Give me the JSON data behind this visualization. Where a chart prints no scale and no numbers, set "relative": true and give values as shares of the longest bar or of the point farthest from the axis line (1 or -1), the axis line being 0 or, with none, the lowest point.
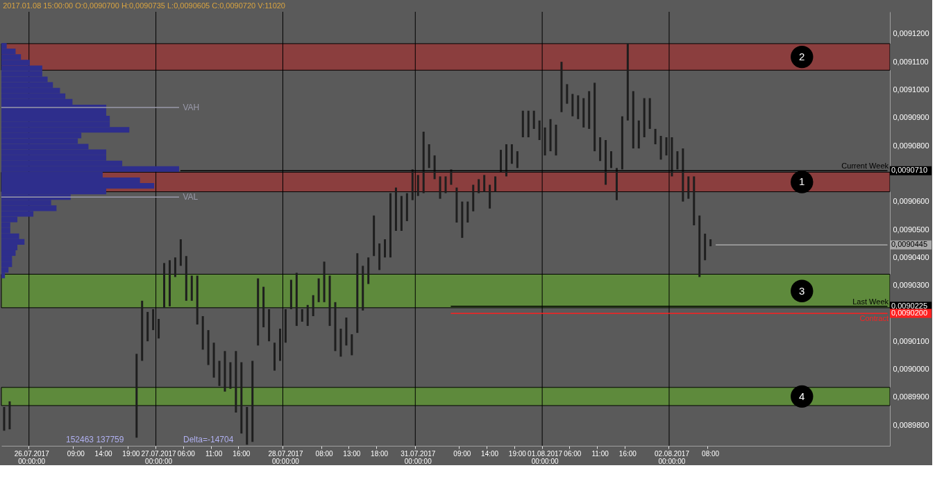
{
  "chart_data": [
    {
      "type": "bar",
      "title": "2017.01.08 15:00:00   O:0,0090700   H:0,0090735   L:0,0090605   C:0,0090720   V:11020",
      "categories": [
        null,
        null,
        null,
        null,
        null,
        "26.07.2017 00:00:00",
        null,
        null,
        null,
        null,
        null,
        null,
        null,
        "09:00",
        null,
        null,
        null,
        null,
        "14:00",
        null,
        null,
        null,
        null,
        "19:00",
        null,
        null,
        null,
        null,
        "27.07.2017 00:00:00",
        null,
        null,
        null,
        null,
        "06:00",
        null,
        null,
        null,
        null,
        "11:00",
        null,
        null,
        null,
        null,
        "16:00",
        null,
        null,
        null,
        null,
        null,
        null,
        null,
        "28.07.2017 00:00:00",
        null,
        null,
        null,
        null,
        null,
        null,
        "08:00",
        null,
        null,
        null,
        null,
        "13:00",
        null,
        null,
        null,
        null,
        "18:00",
        null,
        null,
        null,
        null,
        null,
        null,
        "31.07.2017 00:00:00",
        null,
        null,
        null,
        null,
        null,
        null,
        null,
        "09:00",
        null,
        null,
        null,
        null,
        "14:00",
        null,
        null,
        null,
        null,
        "19:00",
        null,
        null,
        null,
        null,
        "01.08.2017 00:00:00",
        null,
        null,
        null,
        null,
        "06:00",
        null,
        null,
        null,
        null,
        "11:00",
        null,
        null,
        null,
        null,
        "16:00",
        null,
        null,
        null,
        null,
        null,
        null,
        null,
        "02.08.2017 00:00:00",
        null,
        null,
        null,
        null,
        null,
        null,
        "08:00",
        null,
        null,
        null,
        null,
        null,
        null,
        null,
        null,
        null,
        null,
        null,
        null,
        null,
        null,
        null,
        null,
        null,
        null,
        null,
        null,
        null,
        null,
        null,
        null,
        null,
        null,
        null,
        null,
        null,
        null,
        null,
        null
      ],
      "ylim": [
        0.0089726,
        0.0091279
      ],
      "yticks": [
        {
          "value": 0.00912,
          "label": "0,0091200"
        },
        {
          "value": 0.00911,
          "label": "0,0091100"
        },
        {
          "value": 0.0091,
          "label": "0,0091000"
        },
        {
          "value": 0.00909,
          "label": "0,0090900"
        },
        {
          "value": 0.00908,
          "label": "0,0090800"
        },
        {
          "value": 0.00906,
          "label": "0,0090600"
        },
        {
          "value": 0.00905,
          "label": "0,0090500"
        },
        {
          "value": 0.00904,
          "label": "0,0090400"
        },
        {
          "value": 0.00903,
          "label": "0,0090300"
        },
        {
          "value": 0.00901,
          "label": "0,0090100"
        },
        {
          "value": 0.009,
          "label": "0,0090000"
        },
        {
          "value": 0.00899,
          "label": "0,0089900"
        },
        {
          "value": 0.00898,
          "label": "0,0089800"
        }
      ],
      "grid": false,
      "bands": [
        {
          "axis": "y",
          "from": 0.009107,
          "to": 0.0091165,
          "label": "2",
          "color": "#8b3e3e"
        },
        {
          "axis": "y",
          "from": 0.0090635,
          "to": 0.0090705,
          "label": "1",
          "color": "#8b3e3e"
        },
        {
          "axis": "y",
          "from": 0.009022,
          "to": 0.009034,
          "label": "3",
          "color": "#5e8a3c"
        },
        {
          "axis": "y",
          "from": 0.008987,
          "to": 0.0089935,
          "label": "4",
          "color": "#5e8a3c"
        }
      ],
      "ref_lines": [
        {
          "axis": "x",
          "value": "26.07.2017 00:00:00",
          "color": "#000000"
        },
        {
          "axis": "x",
          "value": "27.07.2017 00:00:00",
          "color": "#000000"
        },
        {
          "axis": "x",
          "value": "28.07.2017 00:00:00",
          "color": "#000000"
        },
        {
          "axis": "x",
          "value": "31.07.2017 00:00:00",
          "color": "#000000"
        },
        {
          "axis": "x",
          "value": "01.08.2017 00:00:00",
          "color": "#000000"
        },
        {
          "axis": "x",
          "value": "02.08.2017 00:00:00",
          "color": "#000000"
        }
      ],
      "series": [
        {
          "color": "#1e1e1e",
          "base": [
            0.008978,
            0.0089785,
            null,
            null,
            null,
            null,
            null,
            null,
            null,
            null,
            null,
            null,
            null,
            null,
            null,
            null,
            null,
            null,
            null,
            null,
            null,
            null,
            null,
            null,
            0.0089755,
            0.009003,
            0.00901,
            0.009014,
            0.009011,
            0.009022,
            0.0090225,
            0.009033,
            0.009037,
            0.0090245,
            0.0090245,
            0.009016,
            0.009007,
            0.0090015,
            0.008997,
            0.008994,
            0.008992,
            0.008993,
            0.0089845,
            0.008977,
            0.008973,
            0.008974,
            0.0090085,
            0.009015,
            0.00901,
            0.0089995,
            0.009003,
            0.0090095,
            0.0090215,
            0.0090155,
            0.009017,
            0.0090155,
            0.009019,
            0.009024,
            0.009024,
            0.0090155,
            0.0090065,
            0.0090045,
            0.0090085,
            0.009005,
            0.009013,
            0.009021,
            0.0090305,
            0.0090405,
            0.0090355,
            0.00904,
            0.00904,
            0.0090495,
            0.0090495,
            0.009053,
            0.0090605,
            0.009062,
            0.009063,
            0.009072,
            0.009068,
            0.009061,
            0.009063,
            0.009066,
            0.0090525,
            0.009047,
            0.0090525,
            0.0090565,
            0.009063,
            0.0090635,
            0.0090575,
            0.0090635,
            0.0090705,
            0.009069,
            0.0090735,
            0.009072,
            0.009083,
            0.009083,
            0.009086,
            0.009082,
            0.0090765,
            0.009078,
            0.0090765,
            0.009092,
            0.009095,
            0.0090905,
            0.0090895,
            0.0090865,
            0.009086,
            0.009078,
            0.0090745,
            0.009066,
            0.009072,
            0.0090605,
            0.0090715,
            0.009089,
            0.009079,
            0.009079,
            0.009083,
            0.009086,
            0.0090805,
            0.009075,
            0.0090765,
            0.009069,
            0.0090715,
            0.00906,
            0.009061,
            0.0090515,
            0.009033,
            0.009039,
            0.009044,
            null,
            null,
            null,
            null,
            null,
            null,
            null,
            null,
            null,
            null,
            null,
            null,
            null,
            null,
            null,
            null,
            null,
            null,
            null,
            null,
            null,
            null,
            null,
            null,
            null,
            null,
            null,
            null,
            null,
            null,
            null,
            null
          ],
          "values": [
            8.5e-06,
            1e-05,
            null,
            null,
            null,
            null,
            null,
            null,
            null,
            null,
            null,
            null,
            null,
            null,
            null,
            null,
            null,
            null,
            null,
            null,
            null,
            null,
            null,
            null,
            3e-05,
            2.15e-05,
            1.05e-05,
            7.5e-06,
            7e-06,
            1.6e-05,
            1.65e-05,
            7e-06,
            9.5e-06,
            1.6e-05,
            9e-06,
            1.75e-05,
            1.2e-05,
            1.25e-05,
            1.25e-05,
            9e-06,
            1.45e-05,
            9.5e-06,
            2.2e-05,
            2.55e-05,
            1.35e-05,
            2.9e-05,
            2.4e-05,
            1.45e-05,
            1.15e-05,
            1e-05,
            1.15e-05,
            1.2e-05,
            1.05e-05,
            1.9e-05,
            4.5e-06,
            7.5e-06,
            7.5e-06,
            8.5e-06,
            1.45e-05,
            1.8e-05,
            1.75e-05,
            1e-05,
            1e-05,
            7.5e-06,
            2.85e-05,
            1.6e-05,
            9.5e-06,
            1.45e-05,
            9.5e-06,
            6.5e-06,
            2.3e-05,
            1.55e-05,
            1.25e-05,
            1e-05,
            1.1e-05,
            7.5e-06,
            2.2e-05,
            8.5e-06,
            8.5e-06,
            8e-06,
            6e-06,
            5.5e-06,
            1.25e-05,
            1.3e-05,
            7.5e-06,
            9.5e-06,
            5e-06,
            6e-06,
            8.5e-06,
            5.5e-06,
            8e-06,
            1.15e-05,
            7e-06,
            6e-06,
            9.5e-06,
            9.5e-06,
            6.5e-06,
            7e-06,
            1e-05,
            1.15e-05,
            1.1e-05,
            1.8e-05,
            7e-06,
            8e-06,
            8.5e-06,
            1.05e-05,
            1.35e-05,
            2.45e-05,
            8.5e-06,
            1.6e-05,
            6e-06,
            1.15e-05,
            1.9e-05,
            2.75e-05,
            2.05e-05,
            1e-05,
            1.4e-05,
            1.1e-05,
            5.5e-06,
            8.5e-06,
            6.5e-06,
            1.4e-05,
            6.5e-06,
            1.9e-05,
            8e-06,
            1.75e-05,
            2.2e-05,
            9.5e-06,
            2.5e-06,
            null,
            null,
            null,
            null,
            null,
            null,
            null,
            null,
            null,
            null,
            null,
            null,
            null,
            null,
            null,
            null,
            null,
            null,
            null,
            null,
            null,
            null,
            null,
            null,
            null,
            null,
            null,
            null,
            null,
            null,
            null,
            null
          ]
        },
        {
          "type": "line",
          "name": "Current Week",
          "color": "#000000",
          "values": [
            null,
            null,
            null,
            null,
            null,
            null,
            null,
            null,
            null,
            null,
            null,
            null,
            null,
            null,
            null,
            null,
            null,
            null,
            null,
            null,
            null,
            null,
            null,
            null,
            null,
            null,
            null,
            null,
            null,
            null,
            null,
            null,
            0.009071,
            0.009071,
            0.009071,
            0.009071,
            0.009071,
            0.009071,
            0.009071,
            0.009071,
            0.009071,
            0.009071,
            0.009071,
            0.009071,
            0.009071,
            0.009071,
            0.009071,
            0.009071,
            0.009071,
            0.009071,
            0.009071,
            0.009071,
            0.009071,
            0.009071,
            0.009071,
            0.009071,
            0.009071,
            0.009071,
            0.009071,
            0.009071,
            0.009071,
            0.009071,
            0.009071,
            0.009071,
            0.009071,
            0.009071,
            0.009071,
            0.009071,
            0.009071,
            0.009071,
            0.009071,
            0.009071,
            0.009071,
            0.009071,
            0.009071,
            0.009071,
            0.009071,
            0.009071,
            0.009071,
            0.009071,
            0.009071,
            0.009071,
            0.009071,
            0.009071,
            0.009071,
            0.009071,
            0.009071,
            0.009071,
            0.009071,
            0.009071,
            0.009071,
            0.009071,
            0.009071,
            0.009071,
            0.009071,
            0.009071,
            0.009071,
            0.009071,
            0.009071,
            0.009071,
            0.009071,
            0.009071,
            0.009071,
            0.009071,
            0.009071,
            0.009071,
            0.009071,
            0.009071,
            0.009071,
            0.009071,
            0.009071,
            0.009071,
            0.009071,
            0.009071,
            0.009071,
            0.009071,
            0.009071,
            0.009071,
            0.009071,
            0.009071,
            0.009071,
            0.009071,
            0.009071,
            0.009071,
            0.009071,
            0.009071,
            0.009071,
            0.009071,
            0.009071,
            0.009071,
            0.009071,
            0.009071,
            0.009071,
            0.009071,
            0.009071,
            0.009071,
            0.009071,
            0.009071,
            0.009071,
            0.009071,
            0.009071,
            0.009071,
            0.009071,
            0.009071,
            0.009071,
            0.009071,
            0.009071,
            0.009071,
            0.009071,
            0.009071,
            0.009071,
            0.009071,
            0.009071,
            0.009071,
            0.009071,
            0.009071,
            0.009071,
            0.009071,
            0.009071,
            0.009071,
            0.009071
          ],
          "value_labels": [
            null,
            null,
            null,
            null,
            null,
            null,
            null,
            null,
            null,
            null,
            null,
            null,
            null,
            null,
            null,
            null,
            null,
            null,
            null,
            null,
            null,
            null,
            null,
            null,
            null,
            null,
            null,
            null,
            null,
            null,
            null,
            null,
            null,
            null,
            null,
            null,
            null,
            null,
            null,
            null,
            null,
            null,
            null,
            null,
            null,
            null,
            null,
            null,
            null,
            null,
            null,
            null,
            null,
            null,
            null,
            null,
            null,
            null,
            null,
            null,
            null,
            null,
            null,
            null,
            null,
            null,
            null,
            null,
            null,
            null,
            null,
            null,
            null,
            null,
            null,
            null,
            null,
            null,
            null,
            null,
            null,
            null,
            null,
            null,
            null,
            null,
            null,
            null,
            null,
            null,
            null,
            null,
            null,
            null,
            null,
            null,
            null,
            null,
            null,
            null,
            null,
            null,
            null,
            null,
            null,
            null,
            null,
            null,
            null,
            null,
            null,
            null,
            null,
            null,
            null,
            null,
            null,
            null,
            null,
            null,
            null,
            null,
            null,
            null,
            null,
            null,
            null,
            null,
            null,
            null,
            null,
            null,
            null,
            null,
            null,
            null,
            null,
            null,
            null,
            null,
            null,
            null,
            null,
            null,
            null,
            null,
            null,
            null,
            null,
            null,
            null,
            null,
            null,
            null,
            null,
            null,
            null,
            null,
            null,
            null,
            "0,0090710"
          ]
        },
        {
          "type": "line",
          "name": "Last Week",
          "color": "#000000",
          "values": [
            null,
            null,
            null,
            null,
            null,
            null,
            null,
            null,
            null,
            null,
            null,
            null,
            null,
            null,
            null,
            null,
            null,
            null,
            null,
            null,
            null,
            null,
            null,
            null,
            null,
            null,
            null,
            null,
            null,
            null,
            null,
            null,
            null,
            null,
            null,
            null,
            null,
            null,
            null,
            null,
            null,
            null,
            null,
            null,
            null,
            null,
            null,
            null,
            null,
            null,
            null,
            null,
            null,
            null,
            null,
            null,
            null,
            null,
            null,
            null,
            null,
            null,
            null,
            null,
            null,
            null,
            null,
            null,
            null,
            null,
            null,
            null,
            null,
            null,
            null,
            null,
            null,
            null,
            null,
            null,
            null,
            0.0090225,
            0.0090225,
            0.0090225,
            0.0090225,
            0.0090225,
            0.0090225,
            0.0090225,
            0.0090225,
            0.0090225,
            0.0090225,
            0.0090225,
            0.0090225,
            0.0090225,
            0.0090225,
            0.0090225,
            0.0090225,
            0.0090225,
            0.0090225,
            0.0090225,
            0.0090225,
            0.0090225,
            0.0090225,
            0.0090225,
            0.0090225,
            0.0090225,
            0.0090225,
            0.0090225,
            0.0090225,
            0.0090225,
            0.0090225,
            0.0090225,
            0.0090225,
            0.0090225,
            0.0090225,
            0.0090225,
            0.0090225,
            0.0090225,
            0.0090225,
            0.0090225,
            0.0090225,
            0.0090225,
            0.0090225,
            0.0090225,
            0.0090225,
            0.0090225,
            0.0090225,
            0.0090225,
            0.0090225,
            0.0090225,
            0.0090225,
            0.0090225,
            0.0090225,
            0.0090225,
            0.0090225,
            0.0090225,
            0.0090225,
            0.0090225,
            0.0090225,
            0.0090225,
            0.0090225,
            0.0090225,
            0.0090225,
            0.0090225,
            0.0090225,
            0.0090225,
            0.0090225,
            0.0090225,
            0.0090225,
            0.0090225,
            0.0090225,
            0.0090225,
            0.0090225,
            0.0090225,
            0.0090225,
            0.0090225,
            0.0090225,
            0.0090225,
            0.0090225,
            0.0090225,
            0.0090225
          ],
          "value_labels": [
            null,
            null,
            null,
            null,
            null,
            null,
            null,
            null,
            null,
            null,
            null,
            null,
            null,
            null,
            null,
            null,
            null,
            null,
            null,
            null,
            null,
            null,
            null,
            null,
            null,
            null,
            null,
            null,
            null,
            null,
            null,
            null,
            null,
            null,
            null,
            null,
            null,
            null,
            null,
            null,
            null,
            null,
            null,
            null,
            null,
            null,
            null,
            null,
            null,
            null,
            null,
            null,
            null,
            null,
            null,
            null,
            null,
            null,
            null,
            null,
            null,
            null,
            null,
            null,
            null,
            null,
            null,
            null,
            null,
            null,
            null,
            null,
            null,
            null,
            null,
            null,
            null,
            null,
            null,
            null,
            null,
            null,
            null,
            null,
            null,
            null,
            null,
            null,
            null,
            null,
            null,
            null,
            null,
            null,
            null,
            null,
            null,
            null,
            null,
            null,
            null,
            null,
            null,
            null,
            null,
            null,
            null,
            null,
            null,
            null,
            null,
            null,
            null,
            null,
            null,
            null,
            null,
            null,
            null,
            null,
            null,
            null,
            null,
            null,
            null,
            null,
            null,
            null,
            null,
            null,
            null,
            null,
            null,
            null,
            null,
            null,
            null,
            null,
            null,
            null,
            null,
            null,
            null,
            null,
            null,
            null,
            null,
            null,
            null,
            null,
            null,
            null,
            null,
            null,
            null,
            null,
            null,
            null,
            null,
            null,
            "0,0090225"
          ]
        },
        {
          "type": "line",
          "name": "Contract",
          "color": "#ff2020",
          "values": [
            null,
            null,
            null,
            null,
            null,
            null,
            null,
            null,
            null,
            null,
            null,
            null,
            null,
            null,
            null,
            null,
            null,
            null,
            null,
            null,
            null,
            null,
            null,
            null,
            null,
            null,
            null,
            null,
            null,
            null,
            null,
            null,
            null,
            null,
            null,
            null,
            null,
            null,
            null,
            null,
            null,
            null,
            null,
            null,
            null,
            null,
            null,
            null,
            null,
            null,
            null,
            null,
            null,
            null,
            null,
            null,
            null,
            null,
            null,
            null,
            null,
            null,
            null,
            null,
            null,
            null,
            null,
            null,
            null,
            null,
            null,
            null,
            null,
            null,
            null,
            null,
            null,
            null,
            null,
            null,
            null,
            0.00902,
            0.00902,
            0.00902,
            0.00902,
            0.00902,
            0.00902,
            0.00902,
            0.00902,
            0.00902,
            0.00902,
            0.00902,
            0.00902,
            0.00902,
            0.00902,
            0.00902,
            0.00902,
            0.00902,
            0.00902,
            0.00902,
            0.00902,
            0.00902,
            0.00902,
            0.00902,
            0.00902,
            0.00902,
            0.00902,
            0.00902,
            0.00902,
            0.00902,
            0.00902,
            0.00902,
            0.00902,
            0.00902,
            0.00902,
            0.00902,
            0.00902,
            0.00902,
            0.00902,
            0.00902,
            0.00902,
            0.00902,
            0.00902,
            0.00902,
            0.00902,
            0.00902,
            0.00902,
            0.00902,
            0.00902,
            0.00902,
            0.00902,
            0.00902,
            0.00902,
            0.00902,
            0.00902,
            0.00902,
            0.00902,
            0.00902,
            0.00902,
            0.00902,
            0.00902,
            0.00902,
            0.00902,
            0.00902,
            0.00902,
            0.00902,
            0.00902,
            0.00902,
            0.00902,
            0.00902,
            0.00902,
            0.00902,
            0.00902,
            0.00902,
            0.00902,
            0.00902,
            0.00902,
            0.00902,
            0.00902,
            0.00902,
            0.00902
          ],
          "value_labels": [
            null,
            null,
            null,
            null,
            null,
            null,
            null,
            null,
            null,
            null,
            null,
            null,
            null,
            null,
            null,
            null,
            null,
            null,
            null,
            null,
            null,
            null,
            null,
            null,
            null,
            null,
            null,
            null,
            null,
            null,
            null,
            null,
            null,
            null,
            null,
            null,
            null,
            null,
            null,
            null,
            null,
            null,
            null,
            null,
            null,
            null,
            null,
            null,
            null,
            null,
            null,
            null,
            null,
            null,
            null,
            null,
            null,
            null,
            null,
            null,
            null,
            null,
            null,
            null,
            null,
            null,
            null,
            null,
            null,
            null,
            null,
            null,
            null,
            null,
            null,
            null,
            null,
            null,
            null,
            null,
            null,
            null,
            null,
            null,
            null,
            null,
            null,
            null,
            null,
            null,
            null,
            null,
            null,
            null,
            null,
            null,
            null,
            null,
            null,
            null,
            null,
            null,
            null,
            null,
            null,
            null,
            null,
            null,
            null,
            null,
            null,
            null,
            null,
            null,
            null,
            null,
            null,
            null,
            null,
            null,
            null,
            null,
            null,
            null,
            null,
            null,
            null,
            null,
            null,
            null,
            null,
            null,
            null,
            null,
            null,
            null,
            null,
            null,
            null,
            null,
            null,
            null,
            null,
            null,
            null,
            null,
            null,
            null,
            null,
            null,
            null,
            null,
            null,
            null,
            null,
            null,
            null,
            null,
            null,
            null,
            "0,0090200"
          ]
        },
        {
          "type": "line",
          "color": "#a8a8a8",
          "values": [
            null,
            null,
            null,
            null,
            null,
            null,
            null,
            null,
            null,
            null,
            null,
            null,
            null,
            null,
            null,
            null,
            null,
            null,
            null,
            null,
            null,
            null,
            null,
            null,
            null,
            null,
            null,
            null,
            null,
            null,
            null,
            null,
            null,
            null,
            null,
            null,
            null,
            null,
            null,
            null,
            null,
            null,
            null,
            null,
            null,
            null,
            null,
            null,
            null,
            null,
            null,
            null,
            null,
            null,
            null,
            null,
            null,
            null,
            null,
            null,
            null,
            null,
            null,
            null,
            null,
            null,
            null,
            null,
            null,
            null,
            null,
            null,
            null,
            null,
            null,
            null,
            null,
            null,
            null,
            null,
            null,
            null,
            null,
            null,
            null,
            null,
            null,
            null,
            null,
            null,
            null,
            null,
            null,
            null,
            null,
            null,
            null,
            null,
            null,
            null,
            null,
            null,
            null,
            null,
            null,
            null,
            null,
            null,
            null,
            null,
            null,
            null,
            null,
            null,
            null,
            null,
            null,
            null,
            null,
            null,
            null,
            null,
            null,
            null,
            null,
            null,
            null,
            null,
            null,
            0.0090445,
            0.0090445,
            0.0090445,
            0.0090445,
            0.0090445,
            0.0090445,
            0.0090445,
            0.0090445,
            0.0090445,
            0.0090445,
            0.0090445,
            0.0090445,
            0.0090445,
            0.0090445,
            0.0090445,
            0.0090445,
            0.0090445,
            0.0090445,
            0.0090445,
            0.0090445,
            0.0090445,
            0.0090445,
            0.0090445,
            0.0090445,
            0.0090445,
            0.0090445,
            0.0090445,
            0.0090445,
            0.0090445,
            0.0090445,
            0.0090445,
            0.0090445
          ],
          "value_labels": [
            null,
            null,
            null,
            null,
            null,
            null,
            null,
            null,
            null,
            null,
            null,
            null,
            null,
            null,
            null,
            null,
            null,
            null,
            null,
            null,
            null,
            null,
            null,
            null,
            null,
            null,
            null,
            null,
            null,
            null,
            null,
            null,
            null,
            null,
            null,
            null,
            null,
            null,
            null,
            null,
            null,
            null,
            null,
            null,
            null,
            null,
            null,
            null,
            null,
            null,
            null,
            null,
            null,
            null,
            null,
            null,
            null,
            null,
            null,
            null,
            null,
            null,
            null,
            null,
            null,
            null,
            null,
            null,
            null,
            null,
            null,
            null,
            null,
            null,
            null,
            null,
            null,
            null,
            null,
            null,
            null,
            null,
            null,
            null,
            null,
            null,
            null,
            null,
            null,
            null,
            null,
            null,
            null,
            null,
            null,
            null,
            null,
            null,
            null,
            null,
            null,
            null,
            null,
            null,
            null,
            null,
            null,
            null,
            null,
            null,
            null,
            null,
            null,
            null,
            null,
            null,
            null,
            null,
            null,
            null,
            null,
            null,
            null,
            null,
            null,
            null,
            null,
            null,
            null,
            null,
            null,
            null,
            null,
            null,
            null,
            null,
            null,
            null,
            null,
            null,
            null,
            null,
            null,
            null,
            null,
            null,
            null,
            null,
            null,
            null,
            null,
            null,
            null,
            null,
            null,
            null,
            null,
            null,
            null,
            null,
            "0,0090445"
          ]
        }
      ],
      "annotations": [
        "152463 137759",
        "Delta=-14704"
      ]
    },
    {
      "type": "bar",
      "orientation": "horizontal",
      "relative": true,
      "color": "#2e2e8c",
      "categories": [
        null,
        null,
        null,
        null,
        null,
        null,
        null,
        null,
        null,
        null,
        null,
        "VAH",
        null,
        null,
        null,
        null,
        null,
        null,
        null,
        null,
        null,
        null,
        null,
        null,
        null,
        null,
        null,
        "VAL",
        null,
        null,
        null,
        null,
        null,
        null,
        null,
        null,
        null,
        null,
        null,
        null,
        null,
        null
      ],
      "values": [
        0.03,
        0.08,
        0.11,
        0.16,
        0.23,
        0.23,
        0.26,
        0.29,
        0.33,
        0.36,
        0.4,
        0.59,
        0.59,
        0.61,
        0.61,
        0.72,
        0.45,
        0.43,
        0.49,
        0.59,
        0.59,
        0.68,
        1,
        0.57,
        0.78,
        0.86,
        0.59,
        0.39,
        0.28,
        0.31,
        0.18,
        0.09,
        0.05,
        0.05,
        0.1,
        0.13,
        0.09,
        0.08,
        0.06,
        0.06,
        0.04,
        0.02
      ],
      "ref_lines": [
        {
          "axis": "y",
          "value": "VAH",
          "color": "#9a9aaa"
        },
        {
          "axis": "y",
          "value": "VAL",
          "color": "#9a9aaa"
        }
      ]
    }
  ]
}
